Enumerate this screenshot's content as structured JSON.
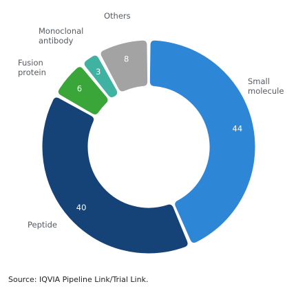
{
  "chart_data": {
    "type": "pie",
    "variant": "donut",
    "title": "",
    "slices": [
      {
        "label": "Small molecule",
        "value": 44,
        "color": "#2e86d6"
      },
      {
        "label": "Peptide",
        "value": 40,
        "color": "#154277"
      },
      {
        "label": "Fusion protein",
        "value": 6,
        "color": "#3aa63a"
      },
      {
        "label": "Monoclonal antibody",
        "value": 3,
        "color": "#3fb2a2"
      },
      {
        "label": "Others",
        "value": 8,
        "color": "#a3a3a3"
      }
    ],
    "legend": "none"
  },
  "source": "Source: IQVIA Pipeline Link/Trial Link."
}
